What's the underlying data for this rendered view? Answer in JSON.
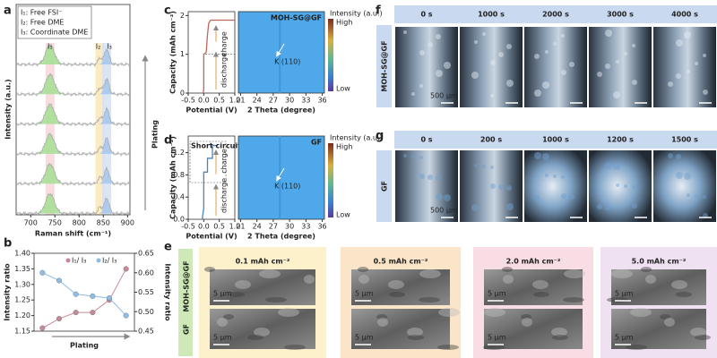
{
  "panel_labels": [
    "a",
    "b",
    "c",
    "d",
    "e",
    "f",
    "g"
  ],
  "chart_data": [
    {
      "type": "raman",
      "xlabel": "Raman shift (cm⁻¹)",
      "ylabel": "Intensity (a.u.)",
      "xlim": [
        670,
        905
      ],
      "xticks": [
        700,
        750,
        800,
        850,
        900
      ],
      "legend": [
        "I₁: Free FSI⁻",
        "I₂: Free DME",
        "I₃: Coordinate DME"
      ],
      "peak_labels": [
        "I₁",
        "I₂",
        "I₃"
      ],
      "peak_positions": [
        740,
        843,
        857
      ],
      "colors": [
        "#f7d6da",
        "#fbe7b5",
        "#d3e2f5"
      ],
      "arrow_label": "Plating"
    },
    {
      "type": "line",
      "xlabel": "Plating",
      "ylabel": "Intensity ratio",
      "y2label": "Intensity ratio",
      "categories": [
        null,
        null,
        null,
        null,
        null,
        null
      ],
      "ylim": [
        1.15,
        1.4
      ],
      "yticks": [
        1.15,
        {
          "value": 1.2,
          "label": "1.20"
        },
        1.25,
        {
          "value": 1.3,
          "label": "1.30"
        },
        1.35,
        {
          "value": 1.4,
          "label": "1.40"
        }
      ],
      "y2lim": [
        0.45,
        0.65
      ],
      "y2ticks": [
        0.45,
        {
          "value": 0.5,
          "label": "0.50"
        },
        0.55,
        {
          "value": 0.6,
          "label": "0.60"
        },
        0.65
      ],
      "series": [
        {
          "name": "I₁/ I₃",
          "color": "#c48a98",
          "values": [
            1.16,
            1.19,
            1.21,
            1.21,
            1.25,
            1.35
          ]
        },
        {
          "name": "I₂/ I₃",
          "color": "#8fbde6",
          "axis": "y2",
          "values": [
            0.6,
            0.58,
            0.545,
            0.54,
            0.535,
            0.49
          ]
        }
      ]
    },
    {
      "type": "profile",
      "xlabel": "Potential (V)",
      "ylabel": "Capacity (mAh cm⁻²)",
      "xlim": [
        -0.5,
        1.0
      ],
      "xticks": [
        -0.5,
        {
          "value": 0,
          "label": "0.0"
        },
        0.5,
        {
          "value": 1,
          "label": "1.0"
        }
      ],
      "ylim": [
        0,
        2.1
      ],
      "yticks": [
        0,
        1,
        2
      ],
      "x": [
        -0.02,
        0.0,
        0.0,
        0.08,
        0.12,
        0.16,
        0.22,
        1.0
      ],
      "series": [
        {
          "color": "#c0675a",
          "values": [
            0,
            0.1,
            1.0,
            1.05,
            1.5,
            1.8,
            1.88,
            1.88
          ]
        }
      ],
      "annotations": [
        "charge",
        "discharge"
      ]
    },
    {
      "type": "heatmap",
      "xlabel": "2 Theta (degree)",
      "xlim": [
        20.6,
        36.4
      ],
      "xticks": [
        21,
        24,
        27,
        30,
        33,
        36
      ],
      "label": "MOH-SG@GF",
      "annotation": "K (110)",
      "colorbar_title": "Intensity (a.u.)",
      "colorbar_labels": [
        "High",
        "Low"
      ],
      "color": "#4ea8ea"
    },
    {
      "type": "profile",
      "xlabel": "Potential (V)",
      "ylabel": "Capacity (mAh cm⁻²)",
      "xlim": [
        -0.5,
        1.0
      ],
      "xticks": [
        -0.5,
        {
          "value": 0,
          "label": "0.0"
        },
        0.5,
        {
          "value": 1,
          "label": "1.0"
        }
      ],
      "ylim": [
        0,
        1.5
      ],
      "yticks": [
        {
          "value": 0,
          "label": "0.0"
        },
        0.4,
        0.8,
        1.2
      ],
      "x": [
        -0.05,
        0.0,
        0.0,
        0.12,
        0.12,
        0.28,
        0.28,
        0.45
      ],
      "series": [
        {
          "color": "#4a86b8",
          "values": [
            0,
            0.2,
            0.85,
            0.85,
            1.1,
            1.1,
            1.33,
            1.33
          ]
        }
      ],
      "annotations": [
        "charge",
        "discharge",
        "Short circuit"
      ]
    },
    {
      "type": "heatmap",
      "xlabel": "2 Theta (degree)",
      "xlim": [
        20.6,
        36.4
      ],
      "xticks": [
        21,
        24,
        27,
        30,
        33,
        36
      ],
      "label": "GF",
      "annotation": "K (110)",
      "colorbar_title": "Intensity (a.u.)",
      "colorbar_labels": [
        "High",
        "Low"
      ],
      "color": "#4ea8ea"
    }
  ],
  "sem": {
    "columns": [
      "0.1 mAh cm⁻²",
      "0.5 mAh cm⁻²",
      "2.0 mAh cm⁻²",
      "5.0 mAh cm⁻²"
    ],
    "column_colors": [
      "#fdf1cc",
      "#fbe5c9",
      "#f9dde4",
      "#efe1f1"
    ],
    "rows": [
      "MOH-SG@GF",
      "GF"
    ],
    "scale_bar": "5 μm"
  },
  "optical": [
    {
      "label": "MOH-SG@GF",
      "times": [
        "0 s",
        "1000 s",
        "2000 s",
        "3000 s",
        "4000 s"
      ],
      "scale_bar": "500 μm"
    },
    {
      "label": "GF",
      "times": [
        "0 s",
        "200 s",
        "1000 s",
        "1200 s",
        "1500 s"
      ],
      "scale_bar": "500 μm"
    }
  ]
}
